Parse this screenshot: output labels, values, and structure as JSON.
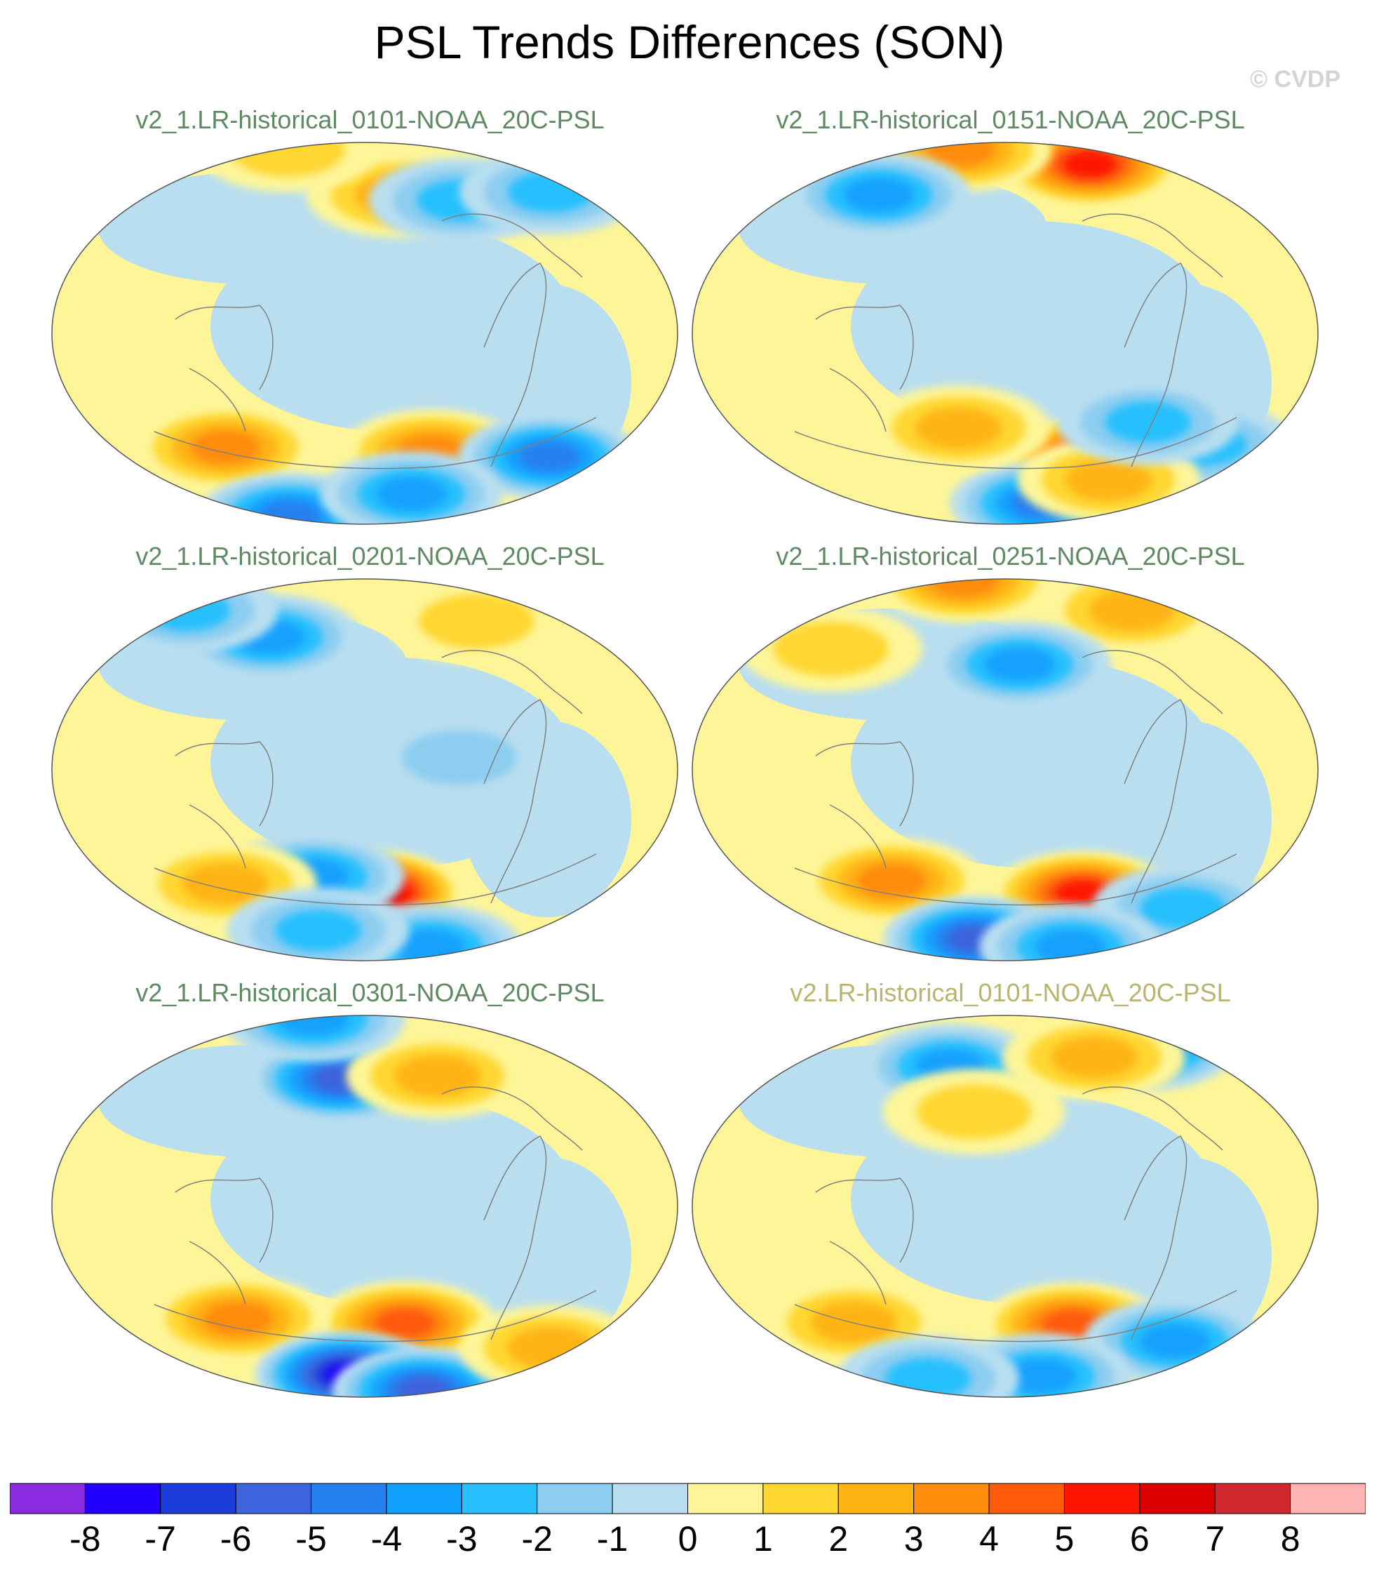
{
  "title": "PSL Trends Differences (SON)",
  "credit": "© CVDP",
  "colors": {
    "ocean_neutral": "#b8def0",
    "land_neutral": "#fdf598",
    "coast": "#808080",
    "title_green": "#5f8a63",
    "title_olive": "#b9b570"
  },
  "panels": [
    {
      "label": "v2_1.LR-historical_0101-NOAA_20C-PSL",
      "title_color": "#5f8a63",
      "anomalies": [
        {
          "lon": 80,
          "lat": -45,
          "value": 4
        },
        {
          "lon": -130,
          "lat": -50,
          "value": 4
        },
        {
          "lon": -150,
          "lat": 60,
          "value": 3
        },
        {
          "lon": -40,
          "lat": -45,
          "value": -5
        },
        {
          "lon": 30,
          "lat": -75,
          "value": -5
        },
        {
          "lon": -120,
          "lat": -70,
          "value": -4
        },
        {
          "lon": 20,
          "lat": 75,
          "value": 2
        },
        {
          "lon": -100,
          "lat": 55,
          "value": -3
        },
        {
          "lon": -20,
          "lat": 50,
          "value": -3
        }
      ]
    },
    {
      "label": "v2_1.LR-historical_0151-NOAA_20C-PSL",
      "title_color": "#5f8a63",
      "anomalies": [
        {
          "lon": -110,
          "lat": -52,
          "value": 7
        },
        {
          "lon": -60,
          "lat": 70,
          "value": 6
        },
        {
          "lon": 60,
          "lat": 80,
          "value": 4
        },
        {
          "lon": 70,
          "lat": 55,
          "value": -4
        },
        {
          "lon": -40,
          "lat": -40,
          "value": -3
        },
        {
          "lon": -120,
          "lat": -75,
          "value": -5
        },
        {
          "lon": -80,
          "lat": -60,
          "value": 3
        },
        {
          "lon": 150,
          "lat": -40,
          "value": 3
        },
        {
          "lon": -90,
          "lat": -35,
          "value": -3
        }
      ]
    },
    {
      "label": "v2_1.LR-historical_0201-NOAA_20C-PSL",
      "title_color": "#5f8a63",
      "anomalies": [
        {
          "lon": -175,
          "lat": -53,
          "value": 8
        },
        {
          "lon": 145,
          "lat": -45,
          "value": -4
        },
        {
          "lon": 80,
          "lat": -45,
          "value": 3
        },
        {
          "lon": 100,
          "lat": 55,
          "value": -4
        },
        {
          "lon": 0,
          "lat": 55,
          "value": -3
        },
        {
          "lon": -60,
          "lat": -75,
          "value": -4
        },
        {
          "lon": 120,
          "lat": -70,
          "value": -3
        },
        {
          "lon": -130,
          "lat": 5,
          "value": -2
        },
        {
          "lon": -70,
          "lat": 60,
          "value": 2
        }
      ]
    },
    {
      "label": "v2_1.LR-historical_0251-NOAA_20C-PSL",
      "title_color": "#5f8a63",
      "anomalies": [
        {
          "lon": -120,
          "lat": -52,
          "value": 6
        },
        {
          "lon": 100,
          "lat": -45,
          "value": 4
        },
        {
          "lon": 30,
          "lat": 82,
          "value": 4
        },
        {
          "lon": -40,
          "lat": 62,
          "value": 3
        },
        {
          "lon": -170,
          "lat": 45,
          "value": -4
        },
        {
          "lon": -30,
          "lat": -50,
          "value": -3
        },
        {
          "lon": 130,
          "lat": -75,
          "value": -6
        },
        {
          "lon": -60,
          "lat": -75,
          "value": -4
        },
        {
          "lon": 50,
          "lat": 45,
          "value": 2
        }
      ]
    },
    {
      "label": "v2_1.LR-historical_0301-NOAA_20C-PSL",
      "title_color": "#5f8a63",
      "anomalies": [
        {
          "lon": -150,
          "lat": -50,
          "value": 5
        },
        {
          "lon": 90,
          "lat": -45,
          "value": 4
        },
        {
          "lon": 160,
          "lat": 55,
          "value": -6
        },
        {
          "lon": -120,
          "lat": 55,
          "value": 3
        },
        {
          "lon": 150,
          "lat": -75,
          "value": -8
        },
        {
          "lon": -40,
          "lat": -78,
          "value": -6
        },
        {
          "lon": -20,
          "lat": -50,
          "value": 3
        },
        {
          "lon": 30,
          "lat": 80,
          "value": -4
        }
      ]
    },
    {
      "label": "v2.LR-historical_0101-NOAA_20C-PSL",
      "title_color": "#b9b570",
      "anomalies": [
        {
          "lon": -130,
          "lat": -50,
          "value": 5
        },
        {
          "lon": 70,
          "lat": -45,
          "value": 3
        },
        {
          "lon": -40,
          "lat": -50,
          "value": -4
        },
        {
          "lon": -30,
          "lat": 60,
          "value": -5
        },
        {
          "lon": 130,
          "lat": 60,
          "value": -4
        },
        {
          "lon": -90,
          "lat": 62,
          "value": 3
        },
        {
          "lon": -120,
          "lat": -75,
          "value": -4
        },
        {
          "lon": 60,
          "lat": -72,
          "value": -3
        },
        {
          "lon": 160,
          "lat": 40,
          "value": 2
        }
      ]
    }
  ],
  "colorbar": {
    "ticks": [
      "-8",
      "-7",
      "-6",
      "-5",
      "-4",
      "-3",
      "-2",
      "-1",
      "0",
      "1",
      "2",
      "3",
      "4",
      "5",
      "6",
      "7",
      "8"
    ],
    "colors": [
      "#8a2be2",
      "#2200ff",
      "#1e3cdc",
      "#3c64dc",
      "#2680f0",
      "#12a0ff",
      "#28c0ff",
      "#8ccdf0",
      "#b8def0",
      "#fdf598",
      "#ffd732",
      "#ffb414",
      "#ff8c0a",
      "#ff5a0a",
      "#ff1400",
      "#dc0000",
      "#d2282d",
      "#ffb4b4"
    ]
  }
}
